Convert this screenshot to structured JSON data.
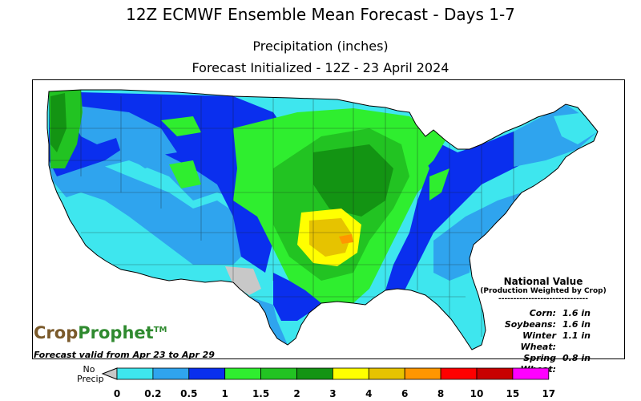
{
  "header": {
    "title": "12Z ECMWF Ensemble Mean Forecast  -  Days 1-7",
    "subtitle": "Precipitation (inches)",
    "initialized": "Forecast Initialized - 12Z - 23 April 2024"
  },
  "national_value": {
    "title": "National Value",
    "subtitle": "(Production Weighted by Crop)",
    "separator": "------------------------------",
    "crops": [
      {
        "name": "Corn:",
        "value": "1.6 in"
      },
      {
        "name": "Soybeans:",
        "value": "1.6 in"
      },
      {
        "name": "Winter Wheat:",
        "value": "1.1 in"
      },
      {
        "name": "Spring Wheat:",
        "value": "0.8 in"
      }
    ]
  },
  "brand": {
    "part1": "Crop",
    "part2": "Prophet",
    "tm": "TM"
  },
  "valid_text": "Forecast valid from Apr 23 to Apr 29",
  "legend": {
    "no_precip_line1": "No",
    "no_precip_line2": "Precip",
    "ticks": [
      "0",
      "0.2",
      "0.5",
      "1",
      "1.5",
      "2",
      "3",
      "4",
      "6",
      "8",
      "10",
      "15",
      "17"
    ],
    "colors": [
      "#3ee6ee",
      "#2fa4ee",
      "#0a2fee",
      "#2fee2f",
      "#22c322",
      "#139413",
      "#ffff00",
      "#e6c300",
      "#ff9600",
      "#ff0000",
      "#c80000",
      "#ff00ff"
    ],
    "no_precip_color": "#c8c8c8"
  }
}
